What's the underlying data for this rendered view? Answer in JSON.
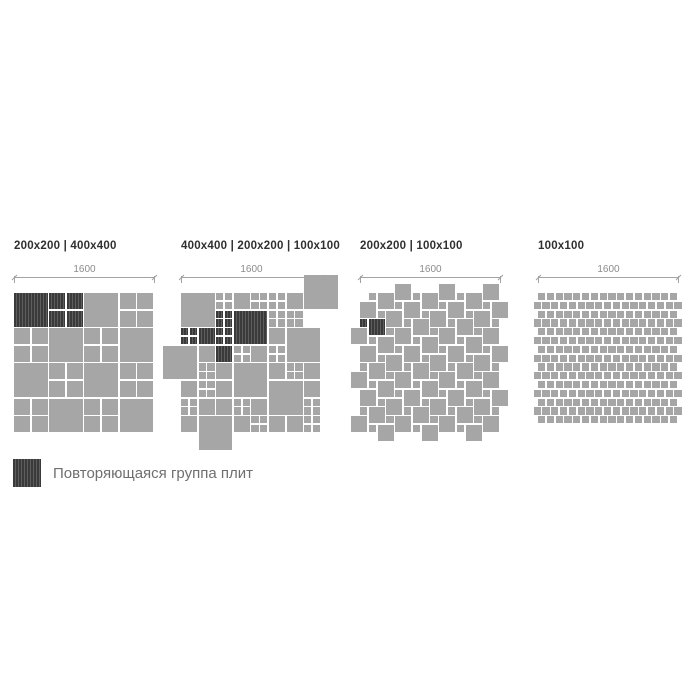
{
  "panels": [
    {
      "label": "200x200 | 400x400",
      "dimension": "1600",
      "pattern": {
        "type": "checkerboard",
        "block_units": 4,
        "cols": 4,
        "rows": 4,
        "hatched_blocks": [
          [
            0,
            0
          ],
          [
            1,
            0
          ]
        ]
      }
    },
    {
      "label": "400x400 | 200x200 | 100x100",
      "dimension": "1600",
      "pattern": {
        "type": "explicit",
        "tiles": [
          [
            0,
            0,
            "4"
          ],
          [
            4,
            0,
            "q"
          ],
          [
            6,
            0,
            "2"
          ],
          [
            8,
            0,
            "q"
          ],
          [
            10,
            0,
            "q"
          ],
          [
            12,
            0,
            "2"
          ],
          [
            14,
            -2,
            "4"
          ],
          [
            4,
            2,
            "hq"
          ],
          [
            6,
            2,
            "h4"
          ],
          [
            10,
            2,
            "q"
          ],
          [
            12,
            2,
            "q"
          ],
          [
            0,
            4,
            "hq"
          ],
          [
            2,
            4,
            "h2"
          ],
          [
            4,
            4,
            "hq"
          ],
          [
            10,
            4,
            "2"
          ],
          [
            12,
            4,
            "4"
          ],
          [
            -2,
            6,
            "4"
          ],
          [
            2,
            6,
            "2"
          ],
          [
            4,
            6,
            "h2"
          ],
          [
            6,
            6,
            "q"
          ],
          [
            8,
            6,
            "2"
          ],
          [
            10,
            6,
            "q"
          ],
          [
            2,
            8,
            "q"
          ],
          [
            4,
            8,
            "2"
          ],
          [
            6,
            8,
            "4"
          ],
          [
            10,
            8,
            "2"
          ],
          [
            12,
            8,
            "q"
          ],
          [
            14,
            8,
            "2"
          ],
          [
            0,
            10,
            "2"
          ],
          [
            2,
            10,
            "q"
          ],
          [
            4,
            10,
            "2"
          ],
          [
            10,
            10,
            "4"
          ],
          [
            14,
            10,
            "2"
          ],
          [
            0,
            12,
            "q"
          ],
          [
            2,
            12,
            "2"
          ],
          [
            4,
            12,
            "2"
          ],
          [
            6,
            12,
            "q"
          ],
          [
            8,
            12,
            "2"
          ],
          [
            14,
            12,
            "q"
          ],
          [
            0,
            14,
            "2"
          ],
          [
            2,
            14,
            "4"
          ],
          [
            6,
            14,
            "2"
          ],
          [
            8,
            14,
            "q"
          ],
          [
            10,
            14,
            "2"
          ],
          [
            12,
            14,
            "2"
          ],
          [
            14,
            14,
            "q"
          ]
        ]
      }
    },
    {
      "label": "200x200 | 100x100",
      "dimension": "1600",
      "pattern": {
        "type": "pythagorean",
        "large_units": 2,
        "small_units": 1,
        "hatched_large": [
          1,
          3
        ],
        "hatched_small": [
          0,
          3
        ]
      }
    },
    {
      "label": "100x100",
      "dimension": "1600",
      "pattern": {
        "type": "running-bond",
        "cols": 16,
        "rows": 15,
        "row_offset": 0.5
      }
    }
  ],
  "field_units": 16,
  "legend": {
    "label": "Повторяющаяся группа плит"
  },
  "colors": {
    "background": "#ffffff",
    "tile": "#a6a6a6",
    "hatch_background": "#3a3a3a",
    "hatch_line": "#5e5e5e",
    "dimension_line": "#a3a3a3",
    "dimension_text": "#8c8c8c",
    "panel_label": "#303030",
    "legend_text": "#6f6f6f"
  }
}
